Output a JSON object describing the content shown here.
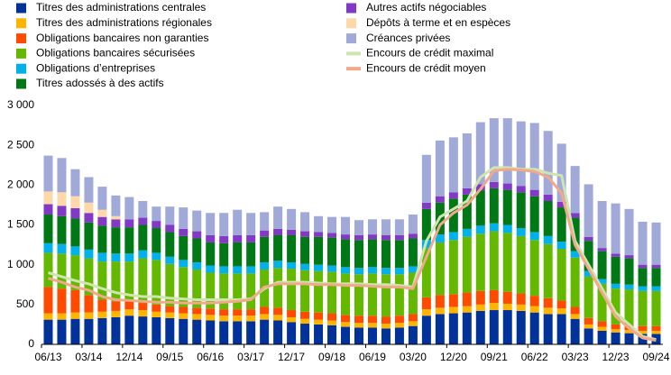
{
  "chart_data": {
    "type": "bar",
    "stacked": true,
    "grid": false,
    "categories": [
      "06/13",
      null,
      null,
      "03/14",
      null,
      null,
      "12/14",
      null,
      null,
      "09/15",
      null,
      null,
      "06/16",
      null,
      null,
      "03/17",
      null,
      null,
      "12/17",
      null,
      null,
      "09/18",
      null,
      null,
      "06/19",
      null,
      null,
      "03/20",
      null,
      null,
      "12/20",
      null,
      null,
      "09/21",
      null,
      null,
      "06/22",
      null,
      null,
      "03/23",
      null,
      null,
      "12/23",
      null,
      null,
      "09/24"
    ],
    "ylim": [
      0,
      3000
    ],
    "yticks": [
      0,
      500,
      {
        "value": 1000,
        "label": "1 000"
      },
      {
        "value": 1500,
        "label": "1 500"
      },
      {
        "value": 2000,
        "label": "2 000"
      },
      {
        "value": 2500,
        "label": "2 500"
      },
      {
        "value": 3000,
        "label": "3 000"
      }
    ],
    "series": [
      {
        "name": "Titres des administrations centrales",
        "color": "#003299",
        "values": [
          310,
          310,
          320,
          320,
          330,
          340,
          360,
          350,
          340,
          330,
          320,
          310,
          300,
          290,
          290,
          290,
          310,
          300,
          280,
          260,
          250,
          240,
          220,
          210,
          210,
          200,
          210,
          230,
          360,
          380,
          390,
          400,
          420,
          430,
          430,
          420,
          400,
          380,
          380,
          320,
          200,
          170,
          150,
          140,
          130,
          130
        ]
      },
      {
        "name": "Titres des administrations régionales",
        "color": "#ffb400",
        "values": [
          80,
          80,
          80,
          80,
          80,
          80,
          80,
          80,
          70,
          70,
          70,
          70,
          70,
          70,
          70,
          70,
          70,
          70,
          60,
          60,
          60,
          60,
          60,
          60,
          60,
          60,
          60,
          60,
          80,
          80,
          80,
          80,
          80,
          90,
          80,
          80,
          80,
          80,
          70,
          60,
          50,
          50,
          40,
          40,
          40,
          40
        ]
      },
      {
        "name": "Obligations bancaires non garanties",
        "color": "#ff4b00",
        "values": [
          330,
          310,
          280,
          220,
          150,
          120,
          100,
          90,
          90,
          80,
          80,
          80,
          80,
          80,
          80,
          80,
          90,
          90,
          90,
          90,
          90,
          90,
          90,
          90,
          90,
          90,
          90,
          90,
          150,
          160,
          160,
          170,
          170,
          160,
          150,
          140,
          130,
          120,
          100,
          90,
          80,
          70,
          60,
          60,
          60,
          60
        ]
      },
      {
        "name": "Obligations bancaires sécurisées",
        "color": "#65b800",
        "values": [
          430,
          440,
          440,
          460,
          480,
          500,
          500,
          560,
          560,
          530,
          500,
          480,
          450,
          450,
          450,
          450,
          470,
          500,
          520,
          520,
          520,
          520,
          520,
          520,
          530,
          530,
          520,
          520,
          620,
          660,
          680,
          700,
          720,
          740,
          740,
          720,
          700,
          680,
          650,
          620,
          520,
          470,
          450,
          450,
          440,
          440
        ]
      },
      {
        "name": "Obligations d’entreprises",
        "color": "#00b1ea",
        "values": [
          120,
          120,
          110,
          110,
          110,
          100,
          100,
          100,
          90,
          90,
          90,
          90,
          90,
          90,
          90,
          90,
          90,
          90,
          80,
          80,
          80,
          80,
          80,
          80,
          80,
          80,
          80,
          80,
          100,
          100,
          100,
          100,
          100,
          100,
          100,
          100,
          100,
          100,
          90,
          80,
          70,
          60,
          60,
          60,
          60,
          60
        ]
      },
      {
        "name": "Titres adossés à des actifs",
        "color": "#007816",
        "values": [
          360,
          350,
          350,
          340,
          340,
          330,
          330,
          320,
          310,
          310,
          300,
          300,
          290,
          290,
          300,
          300,
          320,
          320,
          340,
          340,
          350,
          350,
          350,
          350,
          350,
          350,
          350,
          350,
          390,
          400,
          420,
          430,
          440,
          440,
          440,
          450,
          450,
          440,
          430,
          420,
          380,
          350,
          340,
          330,
          230,
          230
        ]
      },
      {
        "name": "Autres actifs négociables",
        "color": "#8139c6",
        "values": [
          130,
          130,
          130,
          120,
          110,
          100,
          100,
          90,
          90,
          90,
          90,
          90,
          90,
          90,
          90,
          90,
          80,
          80,
          70,
          70,
          60,
          60,
          60,
          60,
          60,
          60,
          60,
          60,
          80,
          80,
          80,
          80,
          80,
          80,
          80,
          80,
          80,
          80,
          70,
          60,
          50,
          40,
          40,
          40,
          40,
          40
        ]
      },
      {
        "name": "Dépôts à terme et en espèces",
        "color": "#fdd8a8",
        "values": [
          160,
          170,
          150,
          130,
          90,
          40,
          0,
          0,
          0,
          0,
          0,
          0,
          0,
          0,
          0,
          0,
          0,
          0,
          0,
          0,
          0,
          0,
          0,
          0,
          0,
          0,
          0,
          0,
          0,
          0,
          0,
          0,
          0,
          0,
          0,
          0,
          0,
          0,
          0,
          0,
          0,
          0,
          0,
          0,
          0,
          0
        ]
      },
      {
        "name": "Créances privées",
        "color": "#a1a9d8",
        "values": [
          450,
          430,
          340,
          320,
          290,
          260,
          280,
          210,
          180,
          230,
          270,
          260,
          280,
          290,
          320,
          280,
          230,
          280,
          260,
          240,
          200,
          200,
          220,
          190,
          190,
          200,
          200,
          240,
          600,
          700,
          690,
          690,
          780,
          800,
          820,
          810,
          840,
          800,
          730,
          590,
          660,
          590,
          630,
          580,
          540,
          530
        ]
      },
      {
        "name": "Encours de crédit maximal",
        "type": "line",
        "color": "#cfe5b0",
        "values": [
          900,
          850,
          800,
          760,
          700,
          650,
          620,
          600,
          600,
          580,
          570,
          560,
          560,
          560,
          560,
          570,
          700,
          780,
          780,
          780,
          770,
          760,
          760,
          760,
          750,
          750,
          740,
          720,
          1300,
          1600,
          1700,
          1800,
          2100,
          2220,
          2220,
          2200,
          2200,
          2150,
          2120,
          1300,
          1000,
          700,
          400,
          250,
          100,
          60
        ]
      },
      {
        "name": "Encours de crédit moyen",
        "type": "line",
        "color": "#f0a98a",
        "values": [
          830,
          780,
          720,
          680,
          600,
          560,
          550,
          540,
          530,
          530,
          520,
          520,
          520,
          530,
          540,
          560,
          720,
          760,
          760,
          760,
          750,
          750,
          740,
          740,
          730,
          720,
          720,
          700,
          1100,
          1500,
          1650,
          1750,
          1950,
          2180,
          2200,
          2190,
          2170,
          2100,
          1900,
          1250,
          950,
          650,
          350,
          200,
          80,
          50
        ]
      }
    ]
  }
}
